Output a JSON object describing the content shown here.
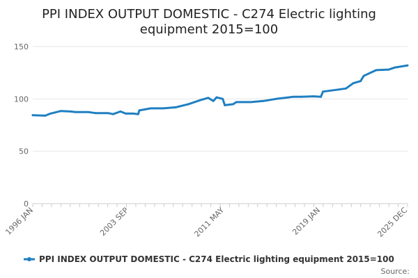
{
  "chart_data": {
    "type": "line",
    "title_lines": [
      "PPI INDEX OUTPUT DOMESTIC - C274 Electric lighting",
      "equipment 2015=100"
    ],
    "x_tick_labels": [
      "1996 JAN",
      "2003 SEP",
      "2011 MAY",
      "2019 JAN",
      "2025 DEC"
    ],
    "y_ticks": [
      0,
      50,
      100,
      150
    ],
    "ylim": [
      0,
      150
    ],
    "xlim": [
      "1996-01",
      "2025-12"
    ],
    "grid": true,
    "legend_position": "bottom",
    "series": [
      {
        "name": "PPI INDEX OUTPUT DOMESTIC - C274 Electric lighting equipment 2015=100",
        "color": "#1f7fc1",
        "points": [
          [
            "1996-01",
            84.5
          ],
          [
            "1997-01",
            84.0
          ],
          [
            "1997-06",
            86.0
          ],
          [
            "1998-04",
            88.5
          ],
          [
            "1999-01",
            88.0
          ],
          [
            "1999-06",
            87.5
          ],
          [
            "2000-06",
            87.5
          ],
          [
            "2001-01",
            86.5
          ],
          [
            "2002-01",
            86.5
          ],
          [
            "2002-06",
            85.5
          ],
          [
            "2003-01",
            88.0
          ],
          [
            "2003-06",
            86.0
          ],
          [
            "2004-01",
            86.0
          ],
          [
            "2004-06",
            85.5
          ],
          [
            "2004-07",
            89.0
          ],
          [
            "2005-06",
            91.0
          ],
          [
            "2006-06",
            91.0
          ],
          [
            "2007-06",
            92.0
          ],
          [
            "2008-06",
            95.0
          ],
          [
            "2009-06",
            99.0
          ],
          [
            "2010-01",
            101.0
          ],
          [
            "2010-06",
            98.0
          ],
          [
            "2010-09",
            101.5
          ],
          [
            "2011-03",
            100.0
          ],
          [
            "2011-05",
            94.0
          ],
          [
            "2012-01",
            95.0
          ],
          [
            "2012-04",
            97.0
          ],
          [
            "2013-06",
            97.0
          ],
          [
            "2014-06",
            98.0
          ],
          [
            "2015-06",
            100.0
          ],
          [
            "2016-06",
            101.5
          ],
          [
            "2016-10",
            102.0
          ],
          [
            "2017-06",
            102.0
          ],
          [
            "2018-06",
            102.5
          ],
          [
            "2019-01",
            102.0
          ],
          [
            "2019-03",
            107.0
          ],
          [
            "2020-06",
            109.0
          ],
          [
            "2021-01",
            110.0
          ],
          [
            "2021-08",
            115.0
          ],
          [
            "2022-03",
            117.0
          ],
          [
            "2022-06",
            122.0
          ],
          [
            "2023-06",
            127.5
          ],
          [
            "2024-06",
            128.0
          ],
          [
            "2024-12",
            130.0
          ],
          [
            "2025-12",
            132.0
          ]
        ]
      }
    ]
  },
  "legend": {
    "label": "PPI INDEX OUTPUT DOMESTIC - C274 Electric lighting equipment 2015=100"
  },
  "source": {
    "label": "Source:"
  }
}
